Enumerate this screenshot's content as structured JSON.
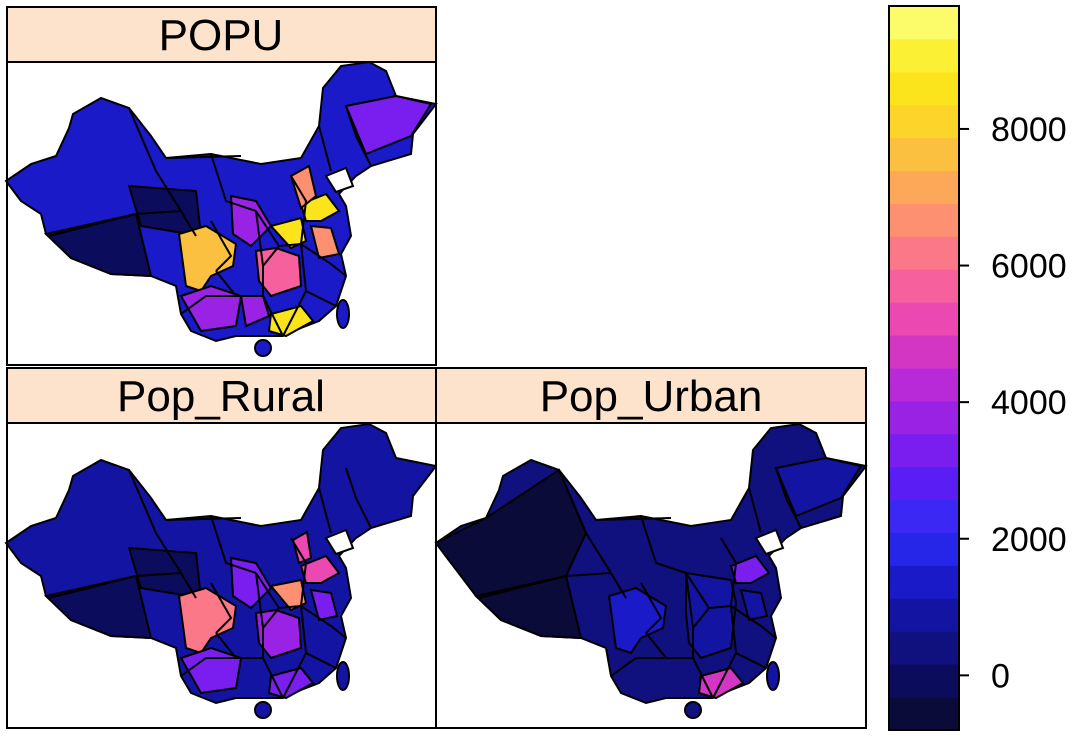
{
  "panels": [
    {
      "id": "popu",
      "title": "POPU"
    },
    {
      "id": "rural",
      "title": "Pop_Rural"
    },
    {
      "id": "urban",
      "title": "Pop_Urban"
    }
  ],
  "legend": {
    "ticks": [
      "0",
      "2000",
      "4000",
      "6000",
      "8000"
    ],
    "tick_values": [
      0,
      2000,
      4000,
      6000,
      8000
    ],
    "range": [
      -800,
      9800
    ],
    "colors": [
      "#0b0b3a",
      "#0c0c5c",
      "#10107e",
      "#1414a2",
      "#1a1ac8",
      "#2626e8",
      "#3c28f4",
      "#5a1ef4",
      "#7a1ef0",
      "#9a22e4",
      "#b82ad8",
      "#d436c4",
      "#ec48b2",
      "#f6609c",
      "#fa7888",
      "#fc9070",
      "#fca858",
      "#fcc040",
      "#fcd42a",
      "#fce41c",
      "#fcf034",
      "#fcfc6a"
    ]
  },
  "colors": {
    "strip_bg": "#fde3cc",
    "province_border": "#000000",
    "taiwan_fill": "#1a1ac8"
  }
}
